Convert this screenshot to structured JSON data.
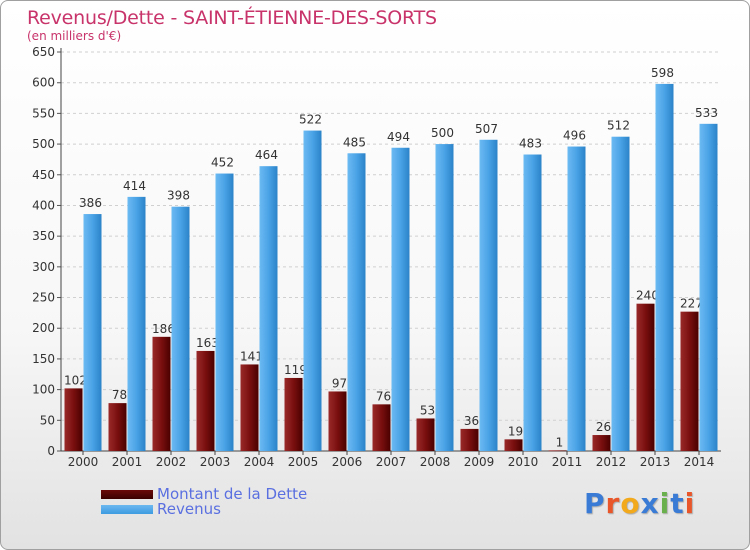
{
  "header": {
    "title": "Revenus/Dette - SAINT-ÉTIENNE-DES-SORTS",
    "subtitle": "(en milliers d'€)"
  },
  "legend": {
    "items": [
      {
        "label": "Montant de la Dette",
        "color": "#6b0a0a"
      },
      {
        "label": "Revenus",
        "color": "#3d9be0"
      }
    ]
  },
  "logo": {
    "text": "Proxiti",
    "colors": [
      "#3a7bd5",
      "#e8562a",
      "#f2a91c",
      "#3a7bd5",
      "#6ab04c",
      "#3a7bd5",
      "#e8562a"
    ]
  },
  "chart_data": {
    "type": "bar",
    "title": "Revenus/Dette - SAINT-ÉTIENNE-DES-SORTS",
    "subtitle": "(en milliers d'€)",
    "xlabel": "",
    "ylabel": "",
    "ylim": [
      0,
      650
    ],
    "ytick_step": 50,
    "grid": true,
    "legend_position": "bottom-left",
    "categories": [
      "2000",
      "2001",
      "2002",
      "2003",
      "2004",
      "2005",
      "2006",
      "2007",
      "2008",
      "2009",
      "2010",
      "2011",
      "2012",
      "2013",
      "2014"
    ],
    "series": [
      {
        "name": "Montant de la Dette",
        "color": "#7a0f0f",
        "values": [
          102,
          78,
          186,
          163,
          141,
          119,
          97,
          76,
          53,
          36,
          19,
          1,
          26,
          240,
          227
        ]
      },
      {
        "name": "Revenus",
        "color": "#4aa3e6",
        "values": [
          386,
          414,
          398,
          452,
          464,
          522,
          485,
          494,
          500,
          507,
          483,
          496,
          512,
          598,
          533
        ]
      }
    ]
  }
}
